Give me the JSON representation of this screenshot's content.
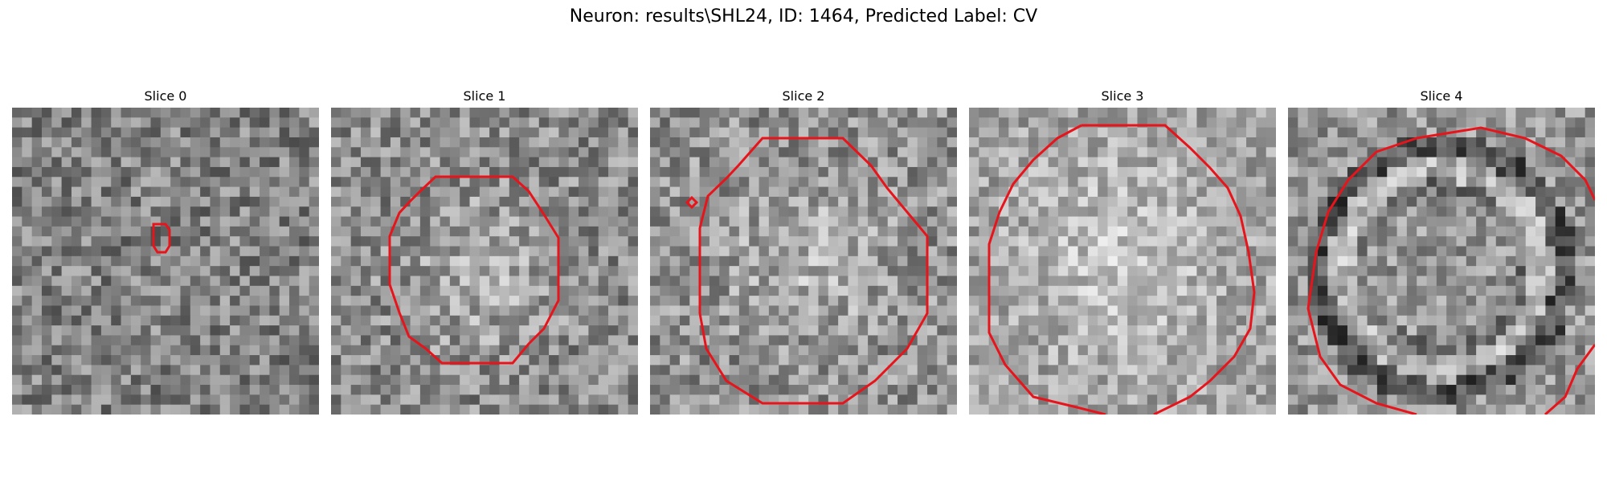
{
  "figure": {
    "title": "Neuron: results\\SHL24, ID: 1464, Predicted Label: CV"
  },
  "slices": [
    {
      "title": "Slice 0"
    },
    {
      "title": "Slice 1"
    },
    {
      "title": "Slice 2"
    },
    {
      "title": "Slice 3"
    },
    {
      "title": "Slice 4"
    }
  ],
  "colors": {
    "contour": "#e8141b"
  }
}
